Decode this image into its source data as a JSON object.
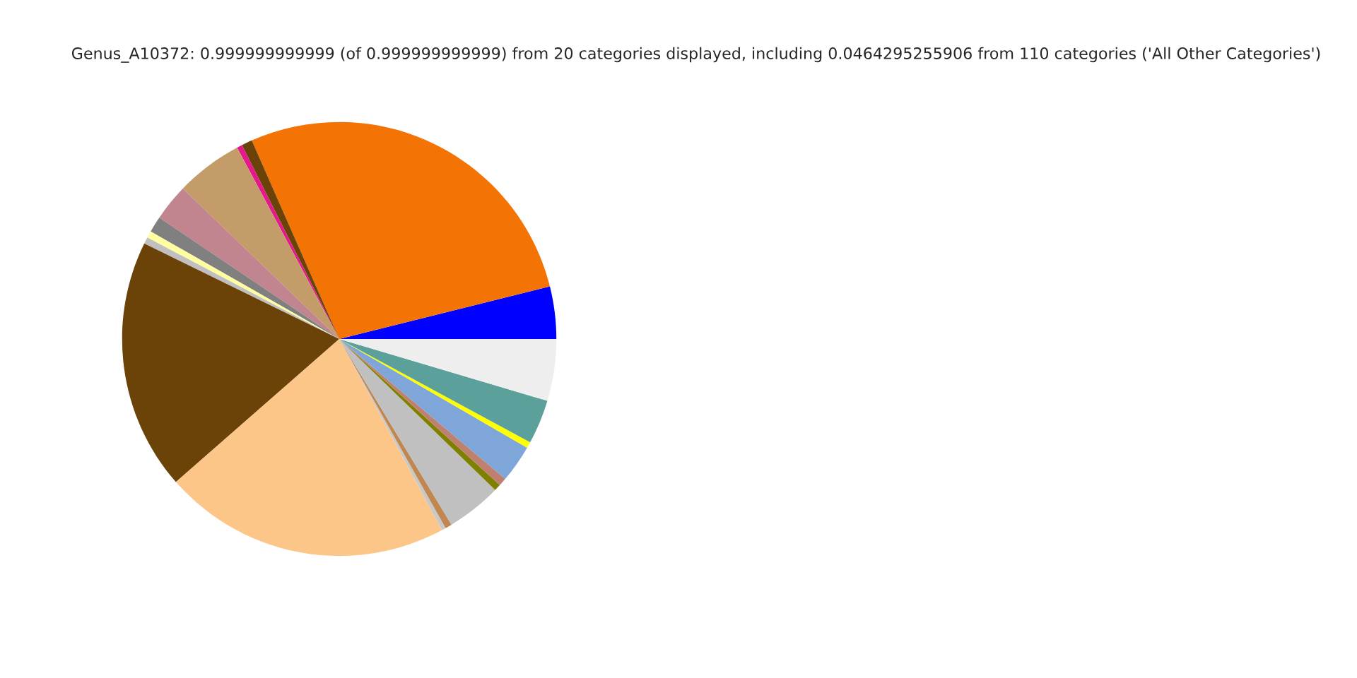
{
  "chart_data": {
    "type": "pie",
    "title": "Genus_A10372: 0.999999999999 (of 0.999999999999) from 20 categories displayed, including 0.0464295255906 from 110 categories ('All Other Categories')",
    "categories": [
      null,
      null,
      null,
      null,
      null,
      null,
      null,
      null,
      null,
      null,
      null,
      null,
      null,
      null,
      null,
      null,
      null,
      null,
      null,
      null
    ],
    "values": [
      3.9,
      27.7,
      0.8,
      0.4,
      5,
      2.75,
      1.2,
      0.5,
      0.5,
      18.7,
      21.4,
      0.3,
      0.5,
      4.1,
      0.5,
      0.6,
      2.8,
      0.45,
      3.3,
      4.6
    ],
    "colors": [
      "#0000ff",
      "#f37304",
      "#6b4309",
      "#e6198c",
      "#c49c6a",
      "#c0858e",
      "#808080",
      "#ffffa0",
      "#c0c0c0",
      "#6b4309",
      "#fdc689",
      "#c8c8c8",
      "#c08850",
      "#c0c0c0",
      "#808000",
      "#c08070",
      "#7ea6d8",
      "#ffff00",
      "#5ba09a",
      "#eeeeee"
    ],
    "legend": false
  }
}
